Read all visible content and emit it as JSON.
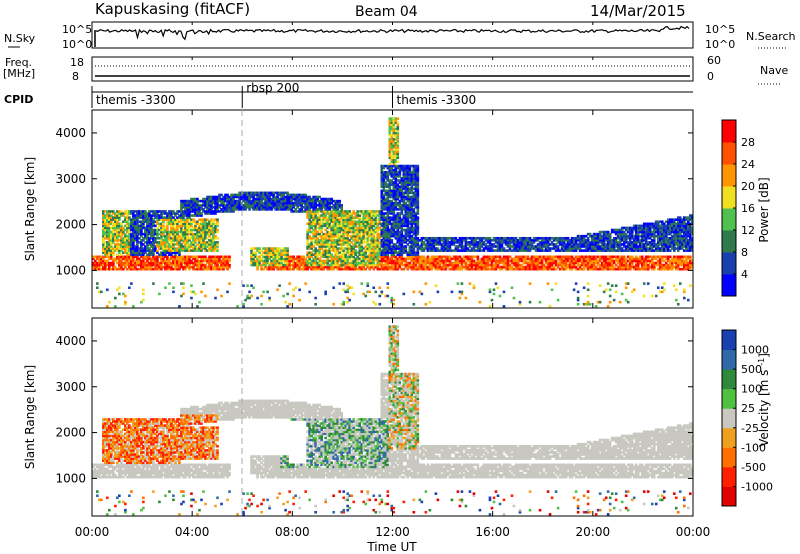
{
  "header": {
    "site": "Kapuskasing (fitACF)",
    "beam": "Beam 04",
    "date": "14/Mar/2015"
  },
  "panels": {
    "nsky": {
      "left_label": "N.Sky",
      "left_ticks": [
        "10^5",
        "10^0"
      ],
      "right_ticks": [
        "10^5",
        "10^0"
      ],
      "right_label": "N.Search"
    },
    "freq": {
      "left_label_1": "Freq.",
      "left_label_2": "[MHz]",
      "left_ticks": [
        "18",
        "8"
      ],
      "right_ticks": [
        "60",
        "0"
      ],
      "right_label": "Nave"
    },
    "cpid": {
      "label": "CPID",
      "segments": [
        {
          "label": "themis -3300",
          "start_hour": 0
        },
        {
          "label": "rbsp 200",
          "start_hour": 6
        },
        {
          "label": "themis -3300",
          "start_hour": 12
        }
      ]
    }
  },
  "chart_data": [
    {
      "type": "heatmap",
      "name": "power",
      "ylabel": "Slant Range [km]",
      "yticks": [
        1000,
        2000,
        3000,
        4000
      ],
      "ylim": [
        180,
        4500
      ],
      "xlim_hours": [
        0,
        24
      ],
      "colorbar": {
        "label": "Power [dB]",
        "ticks": [
          "4",
          "8",
          "12",
          "16",
          "20",
          "24",
          "28"
        ],
        "colors": [
          "#0000ff",
          "#1a3fb0",
          "#2e7a4a",
          "#50c050",
          "#f0e020",
          "#ff9600",
          "#ff5000",
          "#ff0000"
        ]
      }
    },
    {
      "type": "heatmap",
      "name": "velocity",
      "ylabel": "Slant Range [km]",
      "yticks": [
        1000,
        2000,
        3000,
        4000
      ],
      "ylim": [
        180,
        4500
      ],
      "xlim_hours": [
        0,
        24
      ],
      "colorbar": {
        "label": "Velocity [m s^-1]",
        "ticks": [
          "1000",
          "500",
          "100",
          "25",
          "-25",
          "-100",
          "-500",
          "-1000"
        ],
        "colors": [
          "#1a3fb0",
          "#2e6aa8",
          "#2e8a3a",
          "#50c040",
          "#c8c8c0",
          "#f0a020",
          "#ff7000",
          "#ff2000",
          "#e00000"
        ]
      }
    }
  ],
  "xaxis": {
    "ticks": [
      "00:00",
      "04:00",
      "08:00",
      "12:00",
      "16:00",
      "20:00",
      "00:00"
    ],
    "label": "Time UT"
  },
  "colors": {
    "gray": "#c8c8c0",
    "frame": "#000000"
  }
}
